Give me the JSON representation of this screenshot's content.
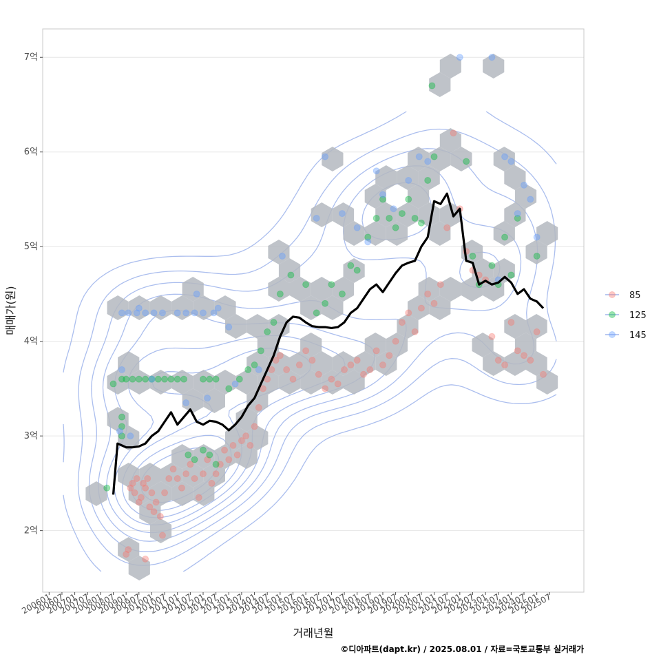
{
  "chart_data": {
    "type": "scatter",
    "title": "",
    "xlabel": "거래년월",
    "ylabel": "매매가(원)",
    "caption": "©디아파트(dapt.kr) / 2025.08.01 / 자료=국토교통부 실거래가",
    "x_ticks": [
      "200601",
      "200607",
      "200701",
      "200707",
      "200801",
      "200807",
      "200901",
      "200907",
      "201001",
      "201007",
      "201101",
      "201107",
      "201201",
      "201207",
      "201301",
      "201307",
      "201401",
      "201407",
      "201501",
      "201507",
      "201601",
      "201607",
      "201701",
      "201707",
      "201801",
      "201807",
      "201901",
      "201907",
      "202001",
      "202007",
      "202101",
      "202107",
      "202201",
      "202207",
      "202301",
      "202307",
      "202401",
      "202407",
      "202501",
      "202507"
    ],
    "y_ticks": [
      "2억",
      "3억",
      "4억",
      "5억",
      "6억",
      "7억"
    ],
    "ylim": [
      1.35,
      7.3
    ],
    "xlim": [
      "2005-10",
      "2026-11"
    ],
    "grid": true,
    "legend_position": "right",
    "colors": {
      "85": "#F8766D",
      "125": "#00BA38",
      "145": "#619CFF",
      "trend": "#000000",
      "hex": "#b4b9c0",
      "contour": "#8fa8e8"
    },
    "series": [
      {
        "name": "85",
        "points": [
          [
            "2009-03",
            2.45
          ],
          [
            "2009-04",
            2.5
          ],
          [
            "2009-05",
            2.4
          ],
          [
            "2009-06",
            2.55
          ],
          [
            "2009-07",
            2.3
          ],
          [
            "2009-08",
            2.35
          ],
          [
            "2009-09",
            2.5
          ],
          [
            "2009-10",
            2.45
          ],
          [
            "2009-11",
            2.55
          ],
          [
            "2009-12",
            2.25
          ],
          [
            "2010-01",
            2.4
          ],
          [
            "2010-02",
            2.2
          ],
          [
            "2010-03",
            2.3
          ],
          [
            "2010-05",
            2.15
          ],
          [
            "2010-07",
            2.4
          ],
          [
            "2010-09",
            2.55
          ],
          [
            "2010-11",
            2.65
          ],
          [
            "2011-01",
            2.55
          ],
          [
            "2011-03",
            2.45
          ],
          [
            "2011-05",
            2.6
          ],
          [
            "2011-07",
            2.7
          ],
          [
            "2011-09",
            2.55
          ],
          [
            "2011-11",
            2.35
          ],
          [
            "2012-01",
            2.6
          ],
          [
            "2012-03",
            2.75
          ],
          [
            "2012-05",
            2.5
          ],
          [
            "2012-07",
            2.6
          ],
          [
            "2012-09",
            2.7
          ],
          [
            "2012-11",
            2.85
          ],
          [
            "2013-01",
            2.75
          ],
          [
            "2013-03",
            2.9
          ],
          [
            "2013-05",
            2.8
          ],
          [
            "2013-07",
            2.95
          ],
          [
            "2013-09",
            3.0
          ],
          [
            "2013-11",
            2.9
          ],
          [
            "2014-01",
            3.1
          ],
          [
            "2014-03",
            3.3
          ],
          [
            "2014-05",
            3.5
          ],
          [
            "2014-07",
            3.6
          ],
          [
            "2014-09",
            3.7
          ],
          [
            "2014-11",
            3.8
          ],
          [
            "2015-01",
            3.85
          ],
          [
            "2015-04",
            3.7
          ],
          [
            "2015-07",
            3.6
          ],
          [
            "2015-10",
            3.75
          ],
          [
            "2016-01",
            3.9
          ],
          [
            "2016-04",
            3.8
          ],
          [
            "2016-07",
            3.65
          ],
          [
            "2016-10",
            3.5
          ],
          [
            "2017-01",
            3.6
          ],
          [
            "2017-04",
            3.55
          ],
          [
            "2017-07",
            3.7
          ],
          [
            "2017-10",
            3.75
          ],
          [
            "2018-01",
            3.8
          ],
          [
            "2018-04",
            3.65
          ],
          [
            "2018-07",
            3.7
          ],
          [
            "2018-10",
            3.9
          ],
          [
            "2019-01",
            3.75
          ],
          [
            "2019-04",
            3.85
          ],
          [
            "2019-07",
            4.0
          ],
          [
            "2019-10",
            4.2
          ],
          [
            "2020-01",
            4.3
          ],
          [
            "2020-04",
            4.1
          ],
          [
            "2020-07",
            4.35
          ],
          [
            "2020-10",
            4.5
          ],
          [
            "2021-01",
            4.4
          ],
          [
            "2021-04",
            4.6
          ],
          [
            "2021-07",
            5.2
          ],
          [
            "2021-10",
            6.2
          ],
          [
            "2022-01",
            5.4
          ],
          [
            "2022-04",
            4.95
          ],
          [
            "2022-07",
            4.75
          ],
          [
            "2022-10",
            4.7
          ],
          [
            "2023-01",
            4.65
          ],
          [
            "2023-04",
            4.05
          ],
          [
            "2023-07",
            3.8
          ],
          [
            "2023-10",
            3.75
          ],
          [
            "2024-01",
            4.2
          ],
          [
            "2024-04",
            3.9
          ],
          [
            "2024-07",
            3.85
          ],
          [
            "2024-10",
            3.8
          ],
          [
            "2025-01",
            4.1
          ],
          [
            "2025-04",
            3.65
          ],
          [
            "2009-01",
            1.75
          ],
          [
            "2009-02",
            1.8
          ],
          [
            "2009-10",
            1.7
          ],
          [
            "2010-06",
            1.95
          ]
        ]
      },
      {
        "name": "125",
        "points": [
          [
            "2008-11",
            3.6
          ],
          [
            "2008-11",
            3.2
          ],
          [
            "2008-11",
            3.1
          ],
          [
            "2008-11",
            3.0
          ],
          [
            "2009-01",
            3.6
          ],
          [
            "2009-04",
            3.6
          ],
          [
            "2009-07",
            3.6
          ],
          [
            "2009-10",
            3.6
          ],
          [
            "2010-01",
            3.6
          ],
          [
            "2010-04",
            3.6
          ],
          [
            "2010-07",
            3.6
          ],
          [
            "2010-10",
            3.6
          ],
          [
            "2011-01",
            3.6
          ],
          [
            "2011-04",
            3.6
          ],
          [
            "2012-01",
            3.6
          ],
          [
            "2012-04",
            3.6
          ],
          [
            "2012-07",
            3.6
          ],
          [
            "2011-06",
            2.8
          ],
          [
            "2011-09",
            2.75
          ],
          [
            "2012-01",
            2.85
          ],
          [
            "2012-04",
            2.8
          ],
          [
            "2012-07",
            2.7
          ],
          [
            "2013-01",
            3.5
          ],
          [
            "2013-06",
            3.6
          ],
          [
            "2013-10",
            3.7
          ],
          [
            "2014-01",
            3.75
          ],
          [
            "2014-04",
            3.9
          ],
          [
            "2014-07",
            4.1
          ],
          [
            "2014-10",
            4.2
          ],
          [
            "2015-01",
            4.5
          ],
          [
            "2015-06",
            4.7
          ],
          [
            "2016-01",
            4.6
          ],
          [
            "2016-06",
            4.3
          ],
          [
            "2016-10",
            4.4
          ],
          [
            "2017-01",
            4.6
          ],
          [
            "2017-06",
            4.5
          ],
          [
            "2017-10",
            4.8
          ],
          [
            "2018-01",
            4.75
          ],
          [
            "2018-06",
            5.1
          ],
          [
            "2018-10",
            5.3
          ],
          [
            "2019-01",
            5.5
          ],
          [
            "2019-04",
            5.3
          ],
          [
            "2019-07",
            5.2
          ],
          [
            "2019-10",
            5.35
          ],
          [
            "2020-01",
            5.5
          ],
          [
            "2020-04",
            5.3
          ],
          [
            "2020-07",
            5.25
          ],
          [
            "2020-10",
            5.7
          ],
          [
            "2020-12",
            6.7
          ],
          [
            "2021-01",
            5.95
          ],
          [
            "2022-04",
            5.9
          ],
          [
            "2022-07",
            4.9
          ],
          [
            "2022-10",
            4.6
          ],
          [
            "2023-04",
            4.8
          ],
          [
            "2023-07",
            4.6
          ],
          [
            "2023-10",
            5.1
          ],
          [
            "2024-01",
            4.7
          ],
          [
            "2024-04",
            5.3
          ],
          [
            "2025-01",
            4.9
          ],
          [
            "2008-07",
            3.55
          ],
          [
            "2008-04",
            2.45
          ]
        ]
      },
      {
        "name": "145",
        "points": [
          [
            "2008-11",
            4.3
          ],
          [
            "2009-02",
            4.3
          ],
          [
            "2009-06",
            4.3
          ],
          [
            "2009-10",
            4.3
          ],
          [
            "2010-02",
            4.3
          ],
          [
            "2010-06",
            4.3
          ],
          [
            "2011-01",
            4.3
          ],
          [
            "2011-05",
            4.3
          ],
          [
            "2011-09",
            4.3
          ],
          [
            "2012-01",
            4.3
          ],
          [
            "2012-06",
            4.3
          ],
          [
            "2013-01",
            4.15
          ],
          [
            "2008-11",
            3.7
          ],
          [
            "2008-10",
            3.05
          ],
          [
            "2009-03",
            3.0
          ],
          [
            "2009-07",
            4.35
          ],
          [
            "2010-01",
            3.6
          ],
          [
            "2011-05",
            3.35
          ],
          [
            "2012-03",
            3.4
          ],
          [
            "2013-04",
            3.55
          ],
          [
            "2014-03",
            3.7
          ],
          [
            "2015-02",
            4.9
          ],
          [
            "2016-06",
            5.3
          ],
          [
            "2016-10",
            5.95
          ],
          [
            "2017-06",
            5.35
          ],
          [
            "2018-01",
            5.2
          ],
          [
            "2018-06",
            5.05
          ],
          [
            "2018-10",
            5.8
          ],
          [
            "2019-01",
            5.55
          ],
          [
            "2019-06",
            5.4
          ],
          [
            "2020-01",
            5.7
          ],
          [
            "2020-06",
            5.95
          ],
          [
            "2020-10",
            5.9
          ],
          [
            "2022-01",
            7.0
          ],
          [
            "2023-04",
            7.0
          ],
          [
            "2023-10",
            5.95
          ],
          [
            "2024-01",
            5.9
          ],
          [
            "2024-04",
            5.35
          ],
          [
            "2024-07",
            5.65
          ],
          [
            "2024-10",
            5.5
          ],
          [
            "2025-01",
            5.1
          ],
          [
            "2023-07",
            4.65
          ],
          [
            "2012-08",
            4.35
          ],
          [
            "2011-10",
            4.5
          ]
        ]
      }
    ],
    "trend_line": [
      [
        "2008-07",
        2.38
      ],
      [
        "2008-09",
        2.92
      ],
      [
        "2008-11",
        2.9
      ],
      [
        "2009-01",
        2.88
      ],
      [
        "2009-04",
        2.88
      ],
      [
        "2009-07",
        2.89
      ],
      [
        "2009-10",
        2.92
      ],
      [
        "2010-01",
        3.0
      ],
      [
        "2010-04",
        3.05
      ],
      [
        "2010-07",
        3.15
      ],
      [
        "2010-10",
        3.25
      ],
      [
        "2011-01",
        3.12
      ],
      [
        "2011-04",
        3.2
      ],
      [
        "2011-07",
        3.28
      ],
      [
        "2011-10",
        3.15
      ],
      [
        "2012-01",
        3.12
      ],
      [
        "2012-04",
        3.16
      ],
      [
        "2012-07",
        3.15
      ],
      [
        "2012-10",
        3.12
      ],
      [
        "2013-01",
        3.06
      ],
      [
        "2013-04",
        3.12
      ],
      [
        "2013-07",
        3.2
      ],
      [
        "2013-10",
        3.32
      ],
      [
        "2014-01",
        3.4
      ],
      [
        "2014-04",
        3.55
      ],
      [
        "2014-07",
        3.7
      ],
      [
        "2014-10",
        3.85
      ],
      [
        "2015-01",
        4.05
      ],
      [
        "2015-04",
        4.2
      ],
      [
        "2015-07",
        4.26
      ],
      [
        "2015-10",
        4.25
      ],
      [
        "2016-01",
        4.2
      ],
      [
        "2016-04",
        4.16
      ],
      [
        "2016-07",
        4.15
      ],
      [
        "2016-10",
        4.15
      ],
      [
        "2017-01",
        4.14
      ],
      [
        "2017-04",
        4.15
      ],
      [
        "2017-07",
        4.2
      ],
      [
        "2017-10",
        4.3
      ],
      [
        "2018-01",
        4.35
      ],
      [
        "2018-04",
        4.45
      ],
      [
        "2018-07",
        4.55
      ],
      [
        "2018-10",
        4.6
      ],
      [
        "2019-01",
        4.52
      ],
      [
        "2019-04",
        4.62
      ],
      [
        "2019-07",
        4.72
      ],
      [
        "2019-10",
        4.8
      ],
      [
        "2020-01",
        4.83
      ],
      [
        "2020-04",
        4.85
      ],
      [
        "2020-07",
        5.0
      ],
      [
        "2020-10",
        5.1
      ],
      [
        "2021-01",
        5.48
      ],
      [
        "2021-04",
        5.45
      ],
      [
        "2021-07",
        5.56
      ],
      [
        "2021-10",
        5.32
      ],
      [
        "2022-01",
        5.4
      ],
      [
        "2022-04",
        4.85
      ],
      [
        "2022-07",
        4.83
      ],
      [
        "2022-10",
        4.6
      ],
      [
        "2023-01",
        4.64
      ],
      [
        "2023-04",
        4.6
      ],
      [
        "2023-07",
        4.62
      ],
      [
        "2023-10",
        4.68
      ],
      [
        "2024-01",
        4.62
      ],
      [
        "2024-04",
        4.5
      ],
      [
        "2024-07",
        4.55
      ],
      [
        "2024-10",
        4.45
      ],
      [
        "2025-01",
        4.42
      ],
      [
        "2025-04",
        4.35
      ]
    ]
  }
}
